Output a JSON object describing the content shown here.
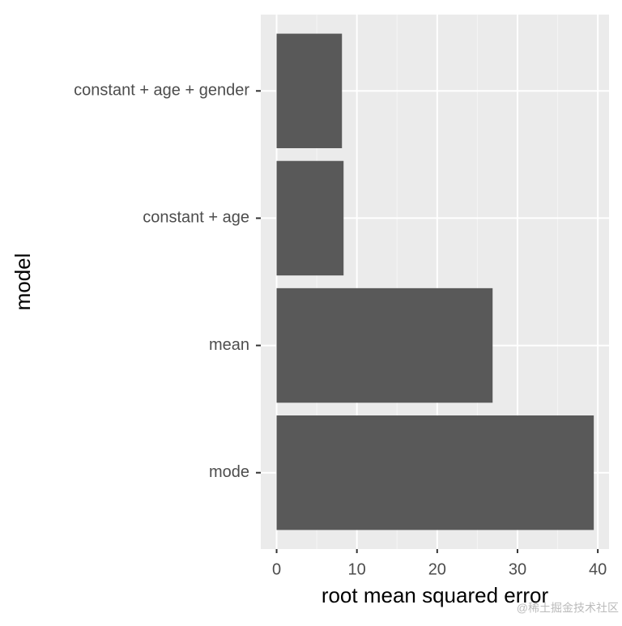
{
  "chart_data": {
    "type": "bar",
    "orientation": "horizontal",
    "categories": [
      "constant + age + gender",
      "constant + age",
      "mean",
      "mode"
    ],
    "values": [
      8.14,
      8.34,
      26.9,
      39.5
    ],
    "color": "#595959",
    "xlim": [
      -1.97,
      41.4
    ],
    "xticks": [
      0,
      10,
      20,
      30,
      40
    ],
    "x_label": "root mean squared error",
    "y_label": "model",
    "grid": true,
    "watermark": "@稀土掘金技术社区"
  }
}
